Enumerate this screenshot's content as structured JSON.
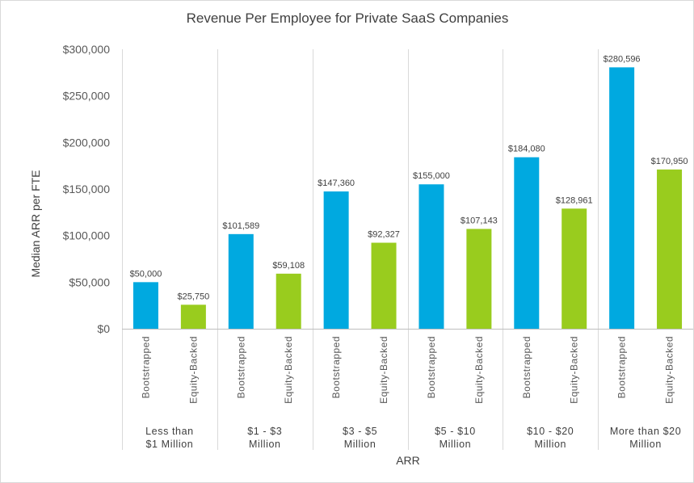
{
  "chart_data": {
    "type": "bar",
    "title": "Revenue Per Employee for Private SaaS Companies",
    "xlabel": "ARR",
    "ylabel": "Median ARR per FTE",
    "ylim": [
      0,
      300000
    ],
    "yticks": [
      0,
      50000,
      100000,
      150000,
      200000,
      250000,
      300000
    ],
    "ytick_labels": [
      "$0",
      "$50,000",
      "$100,000",
      "$150,000",
      "$200,000",
      "$250,000",
      "$300,000"
    ],
    "grid": false,
    "legend": "none",
    "series_names": [
      "Bootstrapped",
      "Equity-Backed"
    ],
    "colors": {
      "Bootstrapped": "#00a9e0",
      "Equity-Backed": "#99cc1e"
    },
    "groups": [
      {
        "label_lines": [
          "Less than",
          "$1 Million"
        ],
        "bars": [
          {
            "series": "Bootstrapped",
            "value": 50000,
            "label": "$50,000"
          },
          {
            "series": "Equity-Backed",
            "value": 25750,
            "label": "$25,750"
          }
        ]
      },
      {
        "label_lines": [
          "$1 - $3",
          "Million"
        ],
        "bars": [
          {
            "series": "Bootstrapped",
            "value": 101589,
            "label": "$101,589"
          },
          {
            "series": "Equity-Backed",
            "value": 59108,
            "label": "$59,108"
          }
        ]
      },
      {
        "label_lines": [
          "$3 - $5",
          "Million"
        ],
        "bars": [
          {
            "series": "Bootstrapped",
            "value": 147360,
            "label": "$147,360"
          },
          {
            "series": "Equity-Backed",
            "value": 92327,
            "label": "$92,327"
          }
        ]
      },
      {
        "label_lines": [
          "$5 - $10",
          "Million"
        ],
        "bars": [
          {
            "series": "Bootstrapped",
            "value": 155000,
            "label": "$155,000"
          },
          {
            "series": "Equity-Backed",
            "value": 107143,
            "label": "$107,143"
          }
        ]
      },
      {
        "label_lines": [
          "$10 - $20",
          "Million"
        ],
        "bars": [
          {
            "series": "Bootstrapped",
            "value": 184080,
            "label": "$184,080"
          },
          {
            "series": "Equity-Backed",
            "value": 128961,
            "label": "$128,961"
          }
        ]
      },
      {
        "label_lines": [
          "More than $20",
          "Million"
        ],
        "bars": [
          {
            "series": "Bootstrapped",
            "value": 280596,
            "label": "$280,596"
          },
          {
            "series": "Equity-Backed",
            "value": 170950,
            "label": "$170,950"
          }
        ]
      }
    ]
  }
}
